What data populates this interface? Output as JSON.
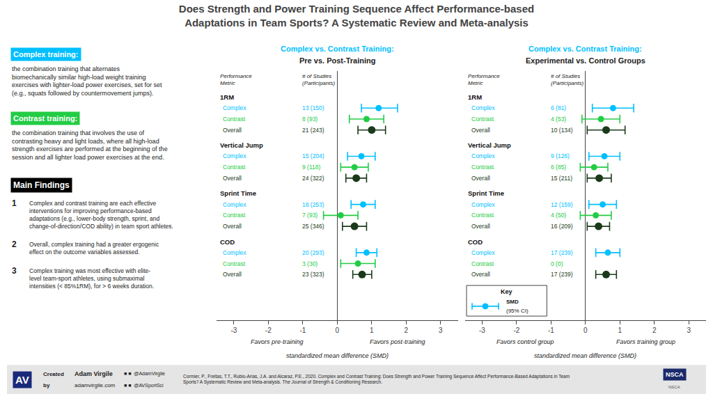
{
  "title": "Does Strength and Power Training Sequence Affect Performance-based\nAdaptations in Team Sports? A Systematic Review and Meta-analysis",
  "annotations": [
    "Complex training:",
    "the combination training that alternates\nbiomechanically similar high-load weight training\nexercises with lighter-load power exercises, set for set\n(e.g., squats followed by countermovement jumps).",
    "Contrast training:",
    "the combination training that involves the use of\ncontrasting heavy and light loads, where all high-load\nstrength exercises are performed at the beginning of the\nsession and all lighter load power exercises at the end.",
    "Main Findings",
    "1",
    "Complex and contrast training are each effective\ninterventions for improving performance-based\nadaptations (e.g., lower-body strength, sprint, and\nchange-of-direction/COD ability) in team sport athletes.",
    "2",
    "Overall, complex training had a greater ergogenic\neffect on the outcome variables assessed.",
    "3",
    "Complex training was most effective with elite-\nlevel team-sport athletes, using submaximal\nintensities (< 85%1RM), for > 6 weeks duration.",
    "AV",
    "Created",
    "by",
    "Adam Virgile",
    "adamvirgile.com",
    "■ ■  @AdamVirgile",
    "■ ■  @AVSportSci",
    "Cormier, P., Freitas, T.T., Rubio-Arias, J.A. and Alcaraz, P.E., 2020. Complex and Contrast Training: Does Strength and Power Training Sequence Affect Performance-Based Adaptations in Team\nSports? A Systematic Review and Meta-analysis. The Journal of Strength & Conditioning Research.",
    "NSCA",
    "NSCA"
  ],
  "chart_data": [
    {
      "type": "forest",
      "title": "Complex vs. Contrast Training:",
      "subtitle": "Pre vs. Post-Training",
      "xlabel": "standardized mean difference (SMD)",
      "annotations": [
        "Performance\nMetric",
        "# of Studies\n(Participants)",
        "Favors pre-training",
        "Favors post-training"
      ],
      "categories": [
        "1RM",
        "Vertical Jump",
        "Sprint Time",
        "COD"
      ],
      "series": [
        {
          "name": "Complex",
          "color": "#00BFFF",
          "values": [
            1.2,
            0.7,
            0.75,
            0.85
          ],
          "ci_low": [
            0.7,
            0.3,
            0.4,
            0.55
          ],
          "ci_high": [
            1.75,
            1.1,
            1.1,
            1.15
          ],
          "n": [
            "13 (150)",
            "15 (204)",
            "18 (253)",
            "20 (293)"
          ]
        },
        {
          "name": "Contrast",
          "color": "#22CC44",
          "values": [
            0.85,
            0.5,
            0.1,
            0.6
          ],
          "ci_low": [
            0.35,
            0.1,
            -0.4,
            0.1
          ],
          "ci_high": [
            1.35,
            0.9,
            0.6,
            1.1
          ],
          "n": [
            "8 (93)",
            "9 (118)",
            "7 (93)",
            "3 (30)"
          ]
        },
        {
          "name": "Overall",
          "color": "#1A3A1A",
          "values": [
            1.0,
            0.55,
            0.5,
            0.72
          ],
          "ci_low": [
            0.6,
            0.25,
            0.15,
            0.45
          ],
          "ci_high": [
            1.4,
            0.85,
            0.85,
            1.0
          ],
          "n": [
            "21 (243)",
            "24 (322)",
            "25 (346)",
            "23 (323)"
          ]
        }
      ],
      "xlim": [
        -3.5,
        3.5
      ],
      "xticks": [
        -3,
        -2,
        -1,
        0,
        1,
        2,
        3
      ],
      "grid": false
    },
    {
      "type": "forest",
      "title": "Complex vs. Contrast Training:",
      "subtitle": "Experimental vs. Control Groups",
      "xlabel": "standardized mean difference (SMD)",
      "annotations": [
        "Performance\nMetric",
        "# of Studies\n(Participants)",
        "Favors control group",
        "Favors training group",
        "Key",
        "SMD",
        "(95% CI)"
      ],
      "categories": [
        "1RM",
        "Vertical Jump",
        "Sprint Time",
        "COD"
      ],
      "series": [
        {
          "name": "Complex",
          "color": "#00BFFF",
          "values": [
            0.8,
            0.55,
            0.5,
            0.65
          ],
          "ci_low": [
            0.2,
            0.1,
            0.1,
            0.3
          ],
          "ci_high": [
            1.4,
            1.0,
            0.9,
            1.0
          ],
          "n": [
            "6 (81)",
            "9 (126)",
            "12 (159)",
            "17 (239)"
          ]
        },
        {
          "name": "Contrast",
          "color": "#22CC44",
          "values": [
            0.45,
            0.25,
            0.3,
            null
          ],
          "ci_low": [
            -0.1,
            -0.15,
            -0.15,
            null
          ],
          "ci_high": [
            1.0,
            0.65,
            0.75,
            null
          ],
          "n": [
            "4 (53)",
            "6 (85)",
            "4 (50)",
            "0 (0)"
          ]
        },
        {
          "name": "Overall",
          "color": "#1A3A1A",
          "values": [
            0.6,
            0.4,
            0.38,
            0.6
          ],
          "ci_low": [
            0.05,
            0.05,
            0.05,
            0.3
          ],
          "ci_high": [
            1.15,
            0.75,
            0.7,
            0.9
          ],
          "n": [
            "10 (134)",
            "15 (211)",
            "16 (209)",
            "17 (239)"
          ]
        }
      ],
      "xlim": [
        -3.5,
        3.5
      ],
      "xticks": [
        -3,
        -2,
        -1,
        0,
        1,
        2,
        3
      ],
      "grid": false
    }
  ]
}
